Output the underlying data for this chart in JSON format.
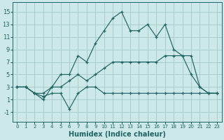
{
  "xlabel": "Humidex (Indice chaleur)",
  "xlim": [
    -0.5,
    23.5
  ],
  "ylim": [
    -2.5,
    16.5
  ],
  "xticks": [
    0,
    1,
    2,
    3,
    4,
    5,
    6,
    7,
    8,
    9,
    10,
    11,
    12,
    13,
    14,
    15,
    16,
    17,
    18,
    19,
    20,
    21,
    22,
    23
  ],
  "yticks": [
    -1,
    1,
    3,
    5,
    7,
    9,
    11,
    13,
    15
  ],
  "bg_color": "#cde8e8",
  "grid_color": "#a8cccc",
  "line_color": "#1e6464",
  "x": [
    0,
    1,
    2,
    3,
    4,
    5,
    6,
    7,
    8,
    9,
    10,
    11,
    12,
    13,
    14,
    15,
    16,
    17,
    18,
    19,
    20,
    21,
    22,
    23
  ],
  "line_max": [
    3,
    3,
    2,
    1,
    3,
    5,
    5,
    8,
    7,
    10,
    12,
    14,
    15,
    12,
    12,
    13,
    11,
    13,
    9,
    8,
    8,
    3,
    2,
    2
  ],
  "line_mean": [
    3,
    3,
    2,
    2,
    3,
    3,
    4,
    5,
    4,
    5,
    6,
    7,
    7,
    7,
    7,
    7,
    7,
    8,
    8,
    8,
    5,
    3,
    2,
    2
  ],
  "line_min": [
    3,
    3,
    2,
    1.5,
    2,
    2,
    -0.5,
    2,
    3,
    3,
    2,
    2,
    2,
    2,
    2,
    2,
    2,
    2,
    2,
    2,
    2,
    2,
    2,
    2
  ]
}
